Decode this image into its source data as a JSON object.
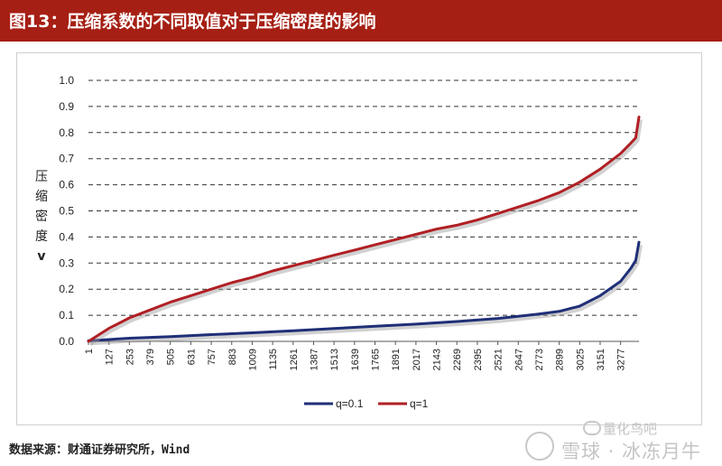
{
  "header": {
    "title": "图13：压缩系数的不同取值对于压缩密度的影响"
  },
  "source": "数据来源：财通证券研究所，Wind",
  "watermark": {
    "line1": "量化鸟吧",
    "line2": "雪球 · 冰冻月牛"
  },
  "colors": {
    "title_bar": "#a61f14",
    "series_q01": "#1f2f77",
    "series_q1": "#b01f24"
  },
  "chart_data": {
    "type": "line",
    "title": "",
    "xlabel": "",
    "ylabel": "压缩密度v",
    "ylabel_chars": [
      "压",
      "缩",
      "密",
      "度",
      "v"
    ],
    "xlim": [
      1,
      3390
    ],
    "ylim": [
      0,
      1.0
    ],
    "y_ticks": [
      "0.0",
      "0.1",
      "0.2",
      "0.3",
      "0.4",
      "0.5",
      "0.6",
      "0.7",
      "0.8",
      "0.9",
      "1.0"
    ],
    "x_ticks": [
      "1",
      "127",
      "253",
      "379",
      "505",
      "631",
      "757",
      "883",
      "1009",
      "1135",
      "1261",
      "1387",
      "1513",
      "1639",
      "1765",
      "1891",
      "2017",
      "2143",
      "2269",
      "2395",
      "2521",
      "2647",
      "2773",
      "2899",
      "3025",
      "3151",
      "3277"
    ],
    "grid": "horizontal dashed",
    "legend_position": "bottom",
    "series": [
      {
        "name": "q=0.1",
        "color": "#1f2f77",
        "x": [
          1,
          253,
          505,
          757,
          1009,
          1261,
          1513,
          1765,
          2017,
          2269,
          2521,
          2647,
          2773,
          2899,
          3025,
          3151,
          3277,
          3340,
          3370,
          3390
        ],
        "y": [
          0.002,
          0.012,
          0.018,
          0.026,
          0.033,
          0.041,
          0.049,
          0.058,
          0.066,
          0.076,
          0.088,
          0.096,
          0.105,
          0.115,
          0.135,
          0.175,
          0.23,
          0.28,
          0.31,
          0.38
        ]
      },
      {
        "name": "q=1",
        "color": "#b01f24",
        "x": [
          1,
          127,
          253,
          379,
          505,
          631,
          757,
          883,
          1009,
          1135,
          1261,
          1387,
          1513,
          1639,
          1765,
          1891,
          2017,
          2143,
          2269,
          2395,
          2521,
          2647,
          2773,
          2899,
          3025,
          3151,
          3277,
          3340,
          3370,
          3390
        ],
        "y": [
          0.0,
          0.05,
          0.09,
          0.12,
          0.15,
          0.175,
          0.2,
          0.225,
          0.245,
          0.27,
          0.29,
          0.31,
          0.33,
          0.35,
          0.37,
          0.39,
          0.41,
          0.43,
          0.445,
          0.465,
          0.49,
          0.515,
          0.54,
          0.57,
          0.61,
          0.66,
          0.72,
          0.76,
          0.78,
          0.86
        ]
      }
    ]
  }
}
